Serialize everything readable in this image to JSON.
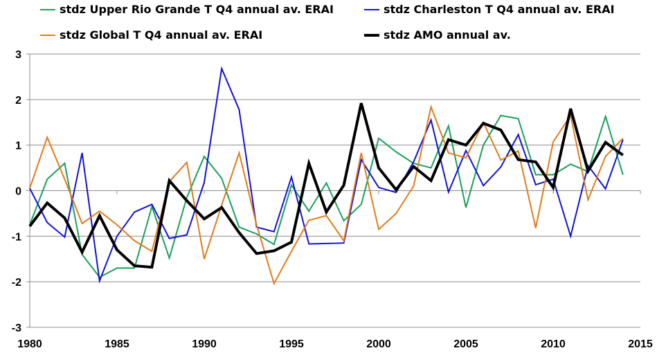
{
  "chart_data": {
    "type": "line",
    "title": "",
    "xlabel": "",
    "ylabel": "",
    "xlim": [
      1980,
      2015
    ],
    "ylim": [
      -3,
      3
    ],
    "x_ticks": [
      1980,
      1985,
      1990,
      1995,
      2000,
      2005,
      2010,
      2015
    ],
    "y_ticks": [
      3,
      2,
      1,
      0,
      -1,
      -2,
      -3
    ],
    "grid": "horizontal",
    "legend": "top",
    "x": [
      1980,
      1981,
      1982,
      1983,
      1984,
      1985,
      1986,
      1987,
      1988,
      1989,
      1990,
      1991,
      1992,
      1993,
      1994,
      1995,
      1996,
      1997,
      1998,
      1999,
      2000,
      2001,
      2002,
      2003,
      2004,
      2005,
      2006,
      2007,
      2008,
      2009,
      2010,
      2011,
      2012,
      2013,
      2014
    ],
    "series": [
      {
        "name": "stdz Upper Rio Grande T Q4 annual av. ERAI",
        "color": "#1a9f5a",
        "width": 2,
        "values": [
          -0.75,
          0.25,
          0.6,
          -1.4,
          -1.9,
          -1.7,
          -1.7,
          -0.35,
          -1.48,
          -0.15,
          0.75,
          0.27,
          -0.8,
          -0.95,
          -1.18,
          0.12,
          -0.45,
          0.17,
          -0.66,
          -0.3,
          1.15,
          0.85,
          0.6,
          0.5,
          1.42,
          -0.37,
          1.0,
          1.65,
          1.58,
          0.35,
          0.35,
          0.58,
          0.42,
          1.63,
          0.35
        ]
      },
      {
        "name": "stdz Charleston T Q4 annual av. ERAI",
        "color": "#1010d8",
        "width": 2,
        "values": [
          0.05,
          -0.7,
          -1.02,
          0.83,
          -1.98,
          -1.0,
          -0.47,
          -0.3,
          -1.05,
          -0.97,
          0.18,
          2.68,
          1.78,
          -0.8,
          -0.9,
          0.3,
          -1.17,
          -1.16,
          -1.15,
          0.68,
          0.07,
          -0.04,
          0.63,
          1.55,
          -0.03,
          0.88,
          0.11,
          0.52,
          1.23,
          0.13,
          0.25,
          -1.0,
          0.55,
          0.04,
          1.12
        ]
      },
      {
        "name": "stdz Global T Q4 annual av. ERAI",
        "color": "#e07b1c",
        "width": 2,
        "values": [
          0.05,
          1.17,
          0.25,
          -0.72,
          -0.45,
          -0.75,
          -1.1,
          -1.33,
          0.2,
          0.62,
          -1.5,
          -0.32,
          0.83,
          -0.75,
          -2.04,
          -1.33,
          -0.65,
          -0.55,
          -1.1,
          0.83,
          -0.85,
          -0.5,
          0.1,
          1.84,
          0.83,
          0.72,
          1.5,
          0.67,
          0.87,
          -0.82,
          1.07,
          1.65,
          -0.2,
          0.75,
          1.15
        ]
      },
      {
        "name": "stdz AMO annual av.",
        "color": "#000000",
        "width": 4,
        "values": [
          -0.78,
          -0.27,
          -0.6,
          -1.35,
          -0.55,
          -1.3,
          -1.65,
          -1.68,
          0.22,
          -0.22,
          -0.62,
          -0.37,
          -0.92,
          -1.38,
          -1.32,
          -1.13,
          0.6,
          -0.47,
          0.12,
          1.92,
          0.5,
          0.02,
          0.53,
          0.22,
          1.12,
          1.0,
          1.48,
          1.33,
          0.68,
          0.63,
          0.07,
          1.8,
          0.43,
          1.06,
          0.78
        ]
      }
    ]
  }
}
